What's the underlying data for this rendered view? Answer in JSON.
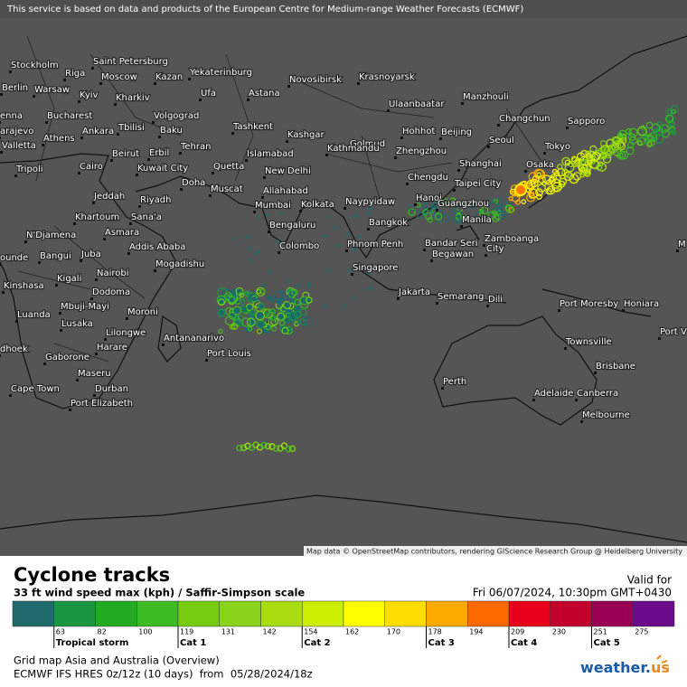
{
  "notice": "This service is based on data and products of the European Centre for Medium-range Weather Forecasts (ECMWF)",
  "attribution": "Map data © OpenStreetMap contributors, rendering GIScience Research Group @ Heidelberg University",
  "cities": [
    "Stockholm",
    "Riga",
    "Saint Petersburg",
    "Moscow",
    "Kazan",
    "Yekaterinburg",
    "Novosibirsk",
    "Krasnoyarsk",
    "Berlin",
    "Warsaw",
    "Kyiv",
    "Kharkiv",
    "Ufa",
    "Astana",
    "Ulaanbaatar",
    "Manzhouli",
    "enna",
    "Bucharest",
    "Volgograd",
    "Changchun",
    "Sapporo",
    "Tbilisi",
    "Baku",
    "Tashkent",
    "Kashgar",
    "Hohhot",
    "Beijing",
    "Seoul",
    "arajevo",
    "Valletta",
    "Athens",
    "Ankara",
    "Tehran",
    "Islamabad",
    "Golmud",
    "Zhengzhou",
    "Tokyo",
    "Tripoli",
    "Cairo",
    "Beirut",
    "Erbil",
    "Kuwait City",
    "Quetta",
    "New Delhi",
    "Kathmandu",
    "Shanghai",
    "Osaka",
    "Chengdu",
    "Doha",
    "Muscat",
    "Allahabad",
    "Taipei City",
    "Jeddah",
    "Riyadh",
    "Mumbai",
    "Kolkata",
    "Naypyidaw",
    "Hanoi",
    "Guangzhou",
    "Khartoum",
    "Sana'a",
    "Bengaluru",
    "Manila",
    "N'Djamena",
    "Asmara",
    "Addis Ababa",
    "Bangkok",
    "Colombo",
    "Phnom Penh",
    "Bandar Seri",
    "Begawan",
    "Zamboanga",
    "City",
    "M",
    "ounde",
    "Bangui",
    "Juba",
    "Mogadishu",
    "Singapore",
    "Kigali",
    "Nairobi",
    "Kinshasa",
    "Dodoma",
    "Jakarta",
    "Semarang",
    "Dili",
    "Port Moresby",
    "Honiara",
    "Luanda",
    "Mbuji-Mayi",
    "Moroni",
    "Lusaka",
    "Lilongwe",
    "Antananarivo",
    "Townsville",
    "Port V",
    "dhoek",
    "Harare",
    "Port Louis",
    "Gaborone",
    "Brisbane",
    "Maseru",
    "Cape Town",
    "Durban",
    "Perth",
    "Adelaide",
    "Canberra",
    "Port Elizabeth",
    "Melbourne"
  ],
  "legend": {
    "title": "Cyclone tracks",
    "subtitle": "33 ft wind speed max (kph) / Saffir-Simpson scale",
    "valid_label": "Valid for",
    "valid_time": "Fri 06/07/2024, 10:30pm GMT+0430",
    "scale": [
      63,
      82,
      100,
      119,
      131,
      142,
      154,
      162,
      170,
      178,
      194,
      209,
      230,
      251,
      275
    ],
    "categories": [
      "Tropical storm",
      "Cat 1",
      "Cat 2",
      "Cat 3",
      "Cat 4",
      "Cat 5"
    ]
  },
  "footer": {
    "map_name": "Grid map Asia and Australia (Overview)",
    "model": "ECMWF IFS HRES 0z/12z (10 days)  from  05/28/2024/18z"
  },
  "logo": [
    "weather.",
    "us"
  ]
}
